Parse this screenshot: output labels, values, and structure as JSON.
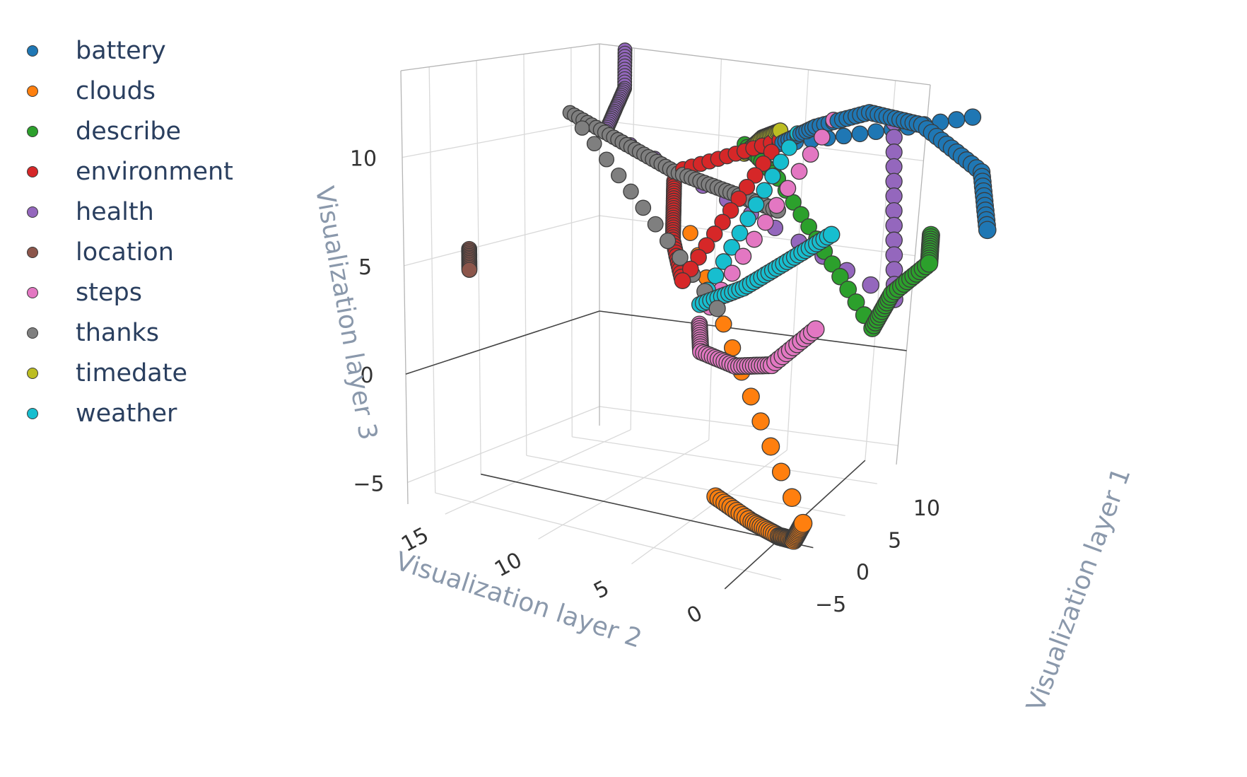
{
  "legend": {
    "placement": "top-left"
  },
  "chart_data": {
    "type": "scatter",
    "subtype": "3d-scatter",
    "title": "",
    "xlabel": "Visualization layer 1",
    "ylabel": "Visualization layer 2",
    "zlabel": "Visualization layer 3",
    "x_ticks": [
      "−5",
      "0",
      "5",
      "10"
    ],
    "y_ticks": [
      "0",
      "5",
      "10",
      "15"
    ],
    "z_ticks": [
      "−5",
      "0",
      "5",
      "10"
    ],
    "grid": true,
    "legend_placement": "top-left",
    "series": [
      {
        "name": "battery",
        "color": "#1f77b4",
        "points": [
          [
            8,
            -8,
            9
          ],
          [
            9,
            -7,
            11.5
          ],
          [
            10,
            -3,
            13
          ],
          [
            10,
            0,
            13.2
          ],
          [
            10,
            3,
            12
          ],
          [
            10,
            5,
            10.8
          ],
          [
            12,
            -5,
            13
          ]
        ]
      },
      {
        "name": "clouds",
        "color": "#ff7f0e",
        "points": [
          [
            -4,
            2,
            -3
          ],
          [
            -4,
            0,
            -3.8
          ],
          [
            -4,
            -1.5,
            -4.2
          ],
          [
            -4.5,
            -2.5,
            -4
          ],
          [
            -4.5,
            -3,
            -3
          ],
          [
            8,
            9,
            6
          ]
        ]
      },
      {
        "name": "describe",
        "color": "#2ca02c",
        "points": [
          [
            5,
            -6,
            9.5
          ],
          [
            5,
            -6,
            8
          ],
          [
            5,
            -4,
            6
          ],
          [
            5,
            -3,
            4
          ],
          [
            10,
            5,
            9
          ],
          [
            10,
            7,
            10.5
          ]
        ]
      },
      {
        "name": "environment",
        "color": "#d62728",
        "points": [
          [
            8,
            10,
            8.5
          ],
          [
            8,
            10,
            7
          ],
          [
            8,
            10,
            5.5
          ],
          [
            3,
            7,
            5
          ],
          [
            10,
            5,
            11
          ],
          [
            8,
            10,
            9
          ]
        ]
      },
      {
        "name": "health",
        "color": "#9467bd",
        "points": [
          [
            12,
            15,
            14
          ],
          [
            12,
            15,
            12
          ],
          [
            11,
            15,
            11
          ],
          [
            10,
            15,
            10
          ],
          [
            8,
            -3,
            4.5
          ],
          [
            11,
            -1,
            12.5
          ]
        ]
      },
      {
        "name": "location",
        "color": "#8c564b",
        "points": [
          [
            -1,
            17,
            5
          ],
          [
            -1,
            17,
            4
          ]
        ]
      },
      {
        "name": "steps",
        "color": "#e377c2",
        "points": [
          [
            2,
            -1,
            4.5
          ],
          [
            1,
            1,
            2.5
          ],
          [
            1,
            3,
            2
          ],
          [
            1,
            5,
            2.3
          ],
          [
            3,
            6,
            3
          ],
          [
            10,
            2,
            12.5
          ]
        ]
      },
      {
        "name": "thanks",
        "color": "#7f7f7f",
        "points": [
          [
            8,
            4,
            8
          ],
          [
            8,
            7,
            8.5
          ],
          [
            8,
            10,
            9
          ],
          [
            8,
            13,
            10
          ],
          [
            8,
            16,
            11
          ],
          [
            3,
            5,
            4
          ]
        ]
      },
      {
        "name": "timedate",
        "color": "#bcbd22",
        "points": [
          [
            10,
            5,
            11.5
          ],
          [
            10,
            6,
            11
          ],
          [
            10,
            7,
            10
          ]
        ]
      },
      {
        "name": "weather",
        "color": "#17becf",
        "points": [
          [
            6,
            0,
            8
          ],
          [
            5,
            2,
            6.5
          ],
          [
            4,
            4,
            5
          ],
          [
            3,
            6,
            4
          ],
          [
            10,
            4,
            11.5
          ]
        ]
      }
    ]
  }
}
